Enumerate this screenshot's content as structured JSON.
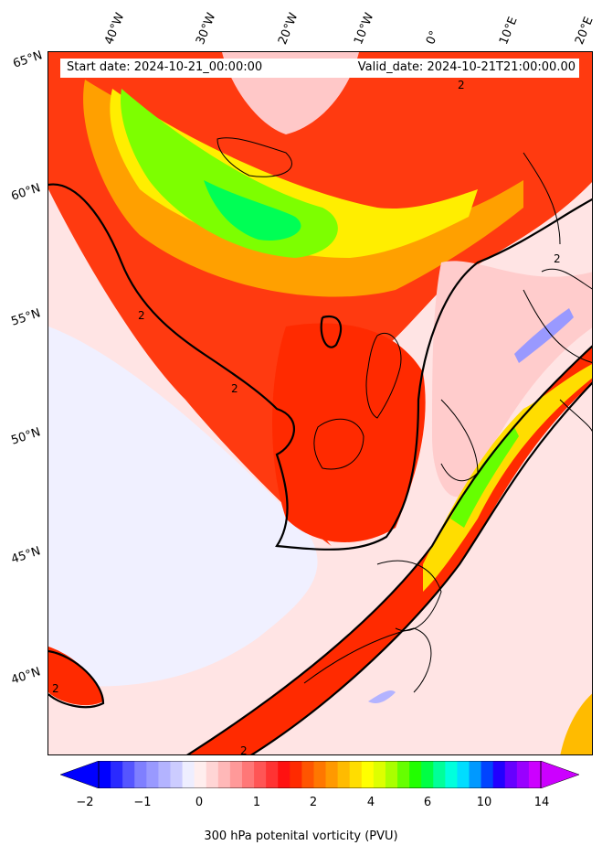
{
  "header": {
    "start_date": "Start date: 2024-10-21_00:00:00",
    "valid_date": "Valid_date: 2024-10-21T21:00:00.00"
  },
  "map": {
    "longitude_labels": [
      "40°W",
      "30°W",
      "20°W",
      "10°W",
      "0°",
      "10°E",
      "20°E"
    ],
    "latitude_labels": [
      "65°N",
      "60°N",
      "55°N",
      "50°N",
      "45°N",
      "40°N"
    ],
    "contour_label": "2",
    "contour_level_pvu": 2
  },
  "colorbar": {
    "label": "300 hPa potenital vorticity (PVU)",
    "tick_labels": [
      "−2",
      "−1",
      "0",
      "1",
      "2",
      "4",
      "6",
      "10",
      "14"
    ],
    "colors": [
      "#0000ff",
      "#2a2aff",
      "#5555ff",
      "#7f7fff",
      "#9999ff",
      "#b3b3ff",
      "#ccccff",
      "#eeeeff",
      "#ffeeee",
      "#ffd5d5",
      "#ffb8b8",
      "#ff9999",
      "#ff7777",
      "#ff5555",
      "#ff3333",
      "#ff1111",
      "#ff2a00",
      "#ff5500",
      "#ff7700",
      "#ff9900",
      "#ffbb00",
      "#ffdd00",
      "#ffff00",
      "#ddff00",
      "#aaff00",
      "#66ff00",
      "#22ff00",
      "#00ff44",
      "#00ff99",
      "#00ffdd",
      "#00ddff",
      "#0099ff",
      "#0044ff",
      "#2200ff",
      "#6600ff",
      "#9900ff",
      "#cc00ff"
    ]
  }
}
